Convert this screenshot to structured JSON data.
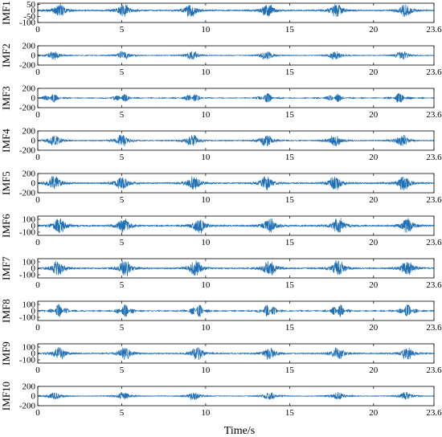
{
  "chart_data": {
    "type": "line",
    "xlabel": "Time/s",
    "x_ticks": [
      "0",
      "5",
      "10",
      "15",
      "20",
      "23.6"
    ],
    "x_range": [
      0,
      23.6
    ],
    "series_color": "#1f6fb5",
    "burst_times": [
      [
        1.3,
        5.1,
        9.1,
        13.7,
        17.8,
        21.9
      ],
      [
        0.95,
        5.1,
        9.2,
        13.6,
        17.7,
        21.7
      ],
      [
        0.8,
        5.0,
        9.2,
        13.6,
        17.7,
        21.6
      ],
      [
        1.0,
        5.0,
        9.2,
        13.6,
        17.7,
        21.7
      ],
      [
        1.0,
        5.0,
        9.3,
        13.6,
        17.7,
        21.8
      ],
      [
        1.3,
        5.1,
        9.6,
        13.8,
        17.9,
        22.0
      ],
      [
        1.2,
        5.2,
        9.4,
        13.8,
        17.9,
        22.0
      ],
      [
        1.3,
        5.2,
        9.5,
        13.8,
        17.9,
        22.0
      ],
      [
        1.3,
        5.2,
        9.5,
        13.8,
        17.9,
        22.0
      ],
      [
        1.0,
        5.1,
        9.3,
        13.8,
        17.9,
        21.9
      ]
    ],
    "subplots": [
      {
        "label": "IMF1",
        "ylim": [
          -100,
          60
        ],
        "yticks": [
          "50",
          "0",
          "-50",
          "-100"
        ],
        "amp": 55
      },
      {
        "label": "IMF2",
        "ylim": [
          -200,
          200
        ],
        "yticks": [
          "200",
          "0",
          "-200"
        ],
        "amp": 90
      },
      {
        "label": "IMF3",
        "ylim": [
          -200,
          200
        ],
        "yticks": [
          "200",
          "0",
          "-200"
        ],
        "amp": 100
      },
      {
        "label": "IMF4",
        "ylim": [
          -200,
          200
        ],
        "yticks": [
          "200",
          "0",
          "-200"
        ],
        "amp": 120
      },
      {
        "label": "IMF5",
        "ylim": [
          -200,
          200
        ],
        "yticks": [
          "200",
          "0",
          "-200"
        ],
        "amp": 150
      },
      {
        "label": "IMF6",
        "ylim": [
          -150,
          150
        ],
        "yticks": [
          "100",
          "0",
          "-100"
        ],
        "amp": 120
      },
      {
        "label": "IMF7",
        "ylim": [
          -150,
          150
        ],
        "yticks": [
          "100",
          "0",
          "-100"
        ],
        "amp": 120
      },
      {
        "label": "IMF8",
        "ylim": [
          -150,
          150
        ],
        "yticks": [
          "100",
          "0",
          "-100"
        ],
        "amp": 100
      },
      {
        "label": "IMF9",
        "ylim": [
          -150,
          150
        ],
        "yticks": [
          "100",
          "0",
          "-100"
        ],
        "amp": 100
      },
      {
        "label": "IMF10",
        "ylim": [
          -200,
          200
        ],
        "yticks": [
          "200",
          "0",
          "-200"
        ],
        "amp": 80
      }
    ]
  }
}
